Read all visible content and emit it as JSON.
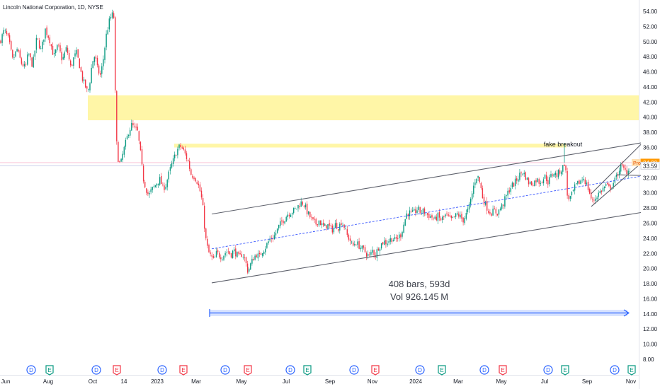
{
  "header": {
    "title": "Lincoln National Corporation, 1D, NYSE"
  },
  "chart_data": {
    "type": "candlestick",
    "title": "Lincoln National Corporation, 1D, NYSE",
    "ylim": [
      7.4,
      55.6
    ],
    "y_ticks": [
      "54.00",
      "52.00",
      "50.00",
      "48.00",
      "46.00",
      "44.00",
      "42.00",
      "40.00",
      "38.00",
      "36.00",
      "34.00",
      "32.00",
      "30.00",
      "28.00",
      "26.00",
      "24.00",
      "22.00",
      "20.00",
      "18.00",
      "16.00",
      "14.00",
      "12.00",
      "10.00",
      "8.00"
    ],
    "x_ticks": [
      "Jun",
      "Aug",
      "Oct",
      "14",
      "2023",
      "Mar",
      "May",
      "Jul",
      "Sep",
      "Nov",
      "2024",
      "Mar",
      "May",
      "Jul",
      "Sep",
      "Nov"
    ],
    "price_path": [
      [
        0,
        50
      ],
      [
        6,
        51.5
      ],
      [
        12,
        50.3
      ],
      [
        18,
        47.5
      ],
      [
        24,
        49
      ],
      [
        30,
        47.2
      ],
      [
        36,
        46.5
      ],
      [
        40,
        48.5
      ],
      [
        46,
        46.8
      ],
      [
        52,
        50.5
      ],
      [
        58,
        48.8
      ],
      [
        64,
        51.6
      ],
      [
        70,
        50.3
      ],
      [
        76,
        48
      ],
      [
        82,
        49.5
      ],
      [
        88,
        47.5
      ],
      [
        94,
        49.2
      ],
      [
        100,
        46.5
      ],
      [
        104,
        47.8
      ],
      [
        108,
        48.5
      ],
      [
        112,
        47
      ],
      [
        116,
        45.2
      ],
      [
        120,
        44.2
      ],
      [
        124,
        43.2
      ],
      [
        127,
        44.8
      ],
      [
        130,
        47.2
      ],
      [
        134,
        48.2
      ],
      [
        138,
        46.2
      ],
      [
        142,
        45.5
      ],
      [
        146,
        47.8
      ],
      [
        150,
        50.8
      ],
      [
        154,
        52.6
      ],
      [
        158,
        53.6
      ],
      [
        162,
        53
      ],
      [
        163,
        39
      ],
      [
        166,
        34.8
      ],
      [
        170,
        33.6
      ],
      [
        174,
        35.4
      ],
      [
        178,
        36.8
      ],
      [
        182,
        38.2
      ],
      [
        186,
        39
      ],
      [
        190,
        38.5
      ],
      [
        194,
        38.2
      ],
      [
        198,
        35.6
      ],
      [
        202,
        32
      ],
      [
        206,
        30.6
      ],
      [
        210,
        29.6
      ],
      [
        214,
        30.4
      ],
      [
        218,
        30.8
      ],
      [
        222,
        31.4
      ],
      [
        226,
        31.8
      ],
      [
        230,
        30.6
      ],
      [
        234,
        31
      ],
      [
        238,
        32.4
      ],
      [
        242,
        33.6
      ],
      [
        246,
        34.6
      ],
      [
        250,
        35.6
      ],
      [
        254,
        36.2
      ],
      [
        258,
        35.8
      ],
      [
        262,
        35
      ],
      [
        266,
        34
      ],
      [
        270,
        32.4
      ],
      [
        274,
        32.2
      ],
      [
        278,
        31.6
      ],
      [
        282,
        30.4
      ],
      [
        286,
        28.6
      ],
      [
        290,
        24.2
      ],
      [
        294,
        22.2
      ],
      [
        298,
        21.6
      ],
      [
        302,
        21
      ],
      [
        306,
        22.1
      ],
      [
        310,
        21.7
      ],
      [
        314,
        21.6
      ],
      [
        318,
        22.1
      ],
      [
        322,
        22.3
      ],
      [
        326,
        21.8
      ],
      [
        330,
        22.4
      ],
      [
        334,
        21.9
      ],
      [
        338,
        21.4
      ],
      [
        342,
        22
      ],
      [
        346,
        21.2
      ],
      [
        350,
        19.6
      ],
      [
        354,
        20.6
      ],
      [
        358,
        21.4
      ],
      [
        362,
        21.9
      ],
      [
        366,
        21.5
      ],
      [
        370,
        22.3
      ],
      [
        374,
        22.7
      ],
      [
        378,
        23.4
      ],
      [
        382,
        24
      ],
      [
        386,
        24.1
      ],
      [
        390,
        24.8
      ],
      [
        394,
        25.6
      ],
      [
        398,
        26.2
      ],
      [
        402,
        26.6
      ],
      [
        406,
        27.2
      ],
      [
        410,
        27.4
      ],
      [
        414,
        27.6
      ],
      [
        418,
        27.9
      ],
      [
        422,
        28.4
      ],
      [
        426,
        28.8
      ],
      [
        430,
        28.4
      ],
      [
        434,
        27.4
      ],
      [
        438,
        26.8
      ],
      [
        442,
        26.2
      ],
      [
        446,
        25.9
      ],
      [
        450,
        26.4
      ],
      [
        454,
        25.8
      ],
      [
        458,
        25.4
      ],
      [
        462,
        25.8
      ],
      [
        466,
        25.4
      ],
      [
        470,
        25.1
      ],
      [
        474,
        25.9
      ],
      [
        478,
        25.4
      ],
      [
        482,
        26.2
      ],
      [
        486,
        25.6
      ],
      [
        490,
        24.4
      ],
      [
        494,
        23.8
      ],
      [
        498,
        22.9
      ],
      [
        502,
        23.5
      ],
      [
        506,
        23.1
      ],
      [
        510,
        22.7
      ],
      [
        514,
        22.4
      ],
      [
        518,
        21.9
      ],
      [
        522,
        21.6
      ],
      [
        526,
        22.4
      ],
      [
        530,
        21.7
      ],
      [
        534,
        22.8
      ],
      [
        538,
        23.2
      ],
      [
        542,
        23.6
      ],
      [
        546,
        23.4
      ],
      [
        550,
        23.8
      ],
      [
        554,
        24
      ],
      [
        558,
        23.7
      ],
      [
        562,
        24.1
      ],
      [
        566,
        24.5
      ],
      [
        570,
        25.8
      ],
      [
        574,
        27.2
      ],
      [
        578,
        27.4
      ],
      [
        582,
        27.2
      ],
      [
        586,
        27.5
      ],
      [
        590,
        27.9
      ],
      [
        594,
        27.4
      ],
      [
        598,
        27.6
      ],
      [
        602,
        27.2
      ],
      [
        606,
        27
      ],
      [
        610,
        26.8
      ],
      [
        614,
        26.4
      ],
      [
        618,
        27
      ],
      [
        622,
        26.4
      ],
      [
        626,
        26.7
      ],
      [
        630,
        27.1
      ],
      [
        634,
        26.6
      ],
      [
        638,
        26.4
      ],
      [
        642,
        26.8
      ],
      [
        646,
        27.2
      ],
      [
        650,
        26.8
      ],
      [
        654,
        26.4
      ],
      [
        658,
        27.1
      ],
      [
        662,
        28
      ],
      [
        666,
        29.6
      ],
      [
        670,
        31.4
      ],
      [
        674,
        32.4
      ],
      [
        678,
        31.2
      ],
      [
        682,
        29.2
      ],
      [
        686,
        28.4
      ],
      [
        690,
        27.6
      ],
      [
        694,
        27.4
      ],
      [
        698,
        27.6
      ],
      [
        702,
        27.3
      ],
      [
        706,
        27.9
      ],
      [
        710,
        28.4
      ],
      [
        714,
        29.4
      ],
      [
        718,
        30.2
      ],
      [
        722,
        30.9
      ],
      [
        726,
        31.2
      ],
      [
        730,
        31.8
      ],
      [
        734,
        32.4
      ],
      [
        738,
        32.8
      ],
      [
        742,
        32.2
      ],
      [
        746,
        31.4
      ],
      [
        750,
        31.2
      ],
      [
        754,
        31.4
      ],
      [
        758,
        31.8
      ],
      [
        762,
        31.4
      ],
      [
        766,
        31.8
      ],
      [
        770,
        32.2
      ],
      [
        774,
        31.4
      ],
      [
        778,
        32.2
      ],
      [
        782,
        32.7
      ],
      [
        786,
        32.3
      ],
      [
        790,
        32.8
      ],
      [
        794,
        33.2
      ],
      [
        798,
        34.2
      ],
      [
        801,
        29.7
      ],
      [
        804,
        29.2
      ],
      [
        808,
        29.8
      ],
      [
        812,
        30.8
      ],
      [
        816,
        31.2
      ],
      [
        820,
        31.6
      ],
      [
        824,
        32
      ],
      [
        828,
        31.2
      ],
      [
        832,
        30.2
      ],
      [
        836,
        28.8
      ],
      [
        840,
        29.2
      ],
      [
        844,
        29.8
      ],
      [
        848,
        30.2
      ],
      [
        852,
        30.6
      ],
      [
        856,
        31
      ],
      [
        860,
        30.6
      ],
      [
        864,
        31
      ],
      [
        868,
        31.6
      ],
      [
        872,
        32.4
      ],
      [
        876,
        33.6
      ],
      [
        880,
        33.2
      ],
      [
        884,
        32.8
      ],
      [
        888,
        33
      ],
      [
        891,
        33.4
      ]
    ],
    "zones": [
      {
        "type": "supply_zone",
        "from": 39.6,
        "to": 42.9,
        "color": "#fff59d"
      },
      {
        "type": "resistance_band",
        "from": 36.0,
        "to": 36.5,
        "color": "#fff59d"
      }
    ],
    "trend_lines": [
      {
        "name": "channel_upper",
        "points": [
          [
            299,
            27.2
          ],
          [
            905,
            36.6
          ]
        ],
        "color": "#5d606b"
      },
      {
        "name": "channel_lower",
        "points": [
          [
            299,
            18.1
          ],
          [
            905,
            27.4
          ]
        ],
        "color": "#5d606b"
      },
      {
        "name": "channel_mid",
        "points": [
          [
            299,
            22.6
          ],
          [
            905,
            32.2
          ]
        ],
        "color": "#3d5afe",
        "dashed": true
      },
      {
        "name": "wedge_upper",
        "points": [
          [
            835,
            29.9
          ],
          [
            905,
            36.4
          ]
        ],
        "color": "#5d606b"
      },
      {
        "name": "wedge_lower",
        "points": [
          [
            835,
            28.2
          ],
          [
            905,
            33.9
          ]
        ],
        "color": "#5d606b"
      },
      {
        "name": "wedge_right",
        "points": [
          [
            871,
            32.4
          ],
          [
            905,
            32.3
          ]
        ],
        "color": "#5d606b"
      }
    ],
    "annotations": [
      {
        "text": "fake breakout",
        "x": 797,
        "y": 36.6
      }
    ],
    "measure": {
      "bars_text": "408 bars, 593d",
      "vol_text": "Vol 926.145 M",
      "color": "#2962ff"
    },
    "price_badges": [
      {
        "label": "34.00",
        "prefix": "Pre",
        "value": 34.0,
        "color": "#ff9800"
      },
      {
        "label": "33.59",
        "value": 33.59,
        "color": "#ffffff"
      }
    ],
    "reference_lines": [
      {
        "value": 34.0,
        "color": "#f8bbd0"
      },
      {
        "value": 33.59,
        "color": "#c5cae9"
      }
    ],
    "events": [
      {
        "type": "D",
        "color": "#2962ff"
      },
      {
        "type": "E",
        "color": "#089981"
      },
      {
        "type": "D",
        "color": "#2962ff"
      },
      {
        "type": "E",
        "color": "#f23645"
      },
      {
        "type": "D",
        "color": "#2962ff"
      },
      {
        "type": "E",
        "color": "#f23645"
      },
      {
        "type": "D",
        "color": "#2962ff"
      },
      {
        "type": "E",
        "color": "#f23645"
      },
      {
        "type": "D",
        "color": "#2962ff"
      },
      {
        "type": "E",
        "color": "#089981"
      },
      {
        "type": "D",
        "color": "#2962ff"
      },
      {
        "type": "E",
        "color": "#f23645"
      },
      {
        "type": "D",
        "color": "#2962ff"
      },
      {
        "type": "E",
        "color": "#089981"
      },
      {
        "type": "D",
        "color": "#2962ff"
      },
      {
        "type": "E",
        "color": "#f23645"
      },
      {
        "type": "D",
        "color": "#2962ff"
      },
      {
        "type": "E",
        "color": "#089981"
      },
      {
        "type": "D",
        "color": "#2962ff"
      },
      {
        "type": "E",
        "color": "#089981"
      }
    ],
    "colors": {
      "up": "#089981",
      "down": "#f23645"
    }
  }
}
